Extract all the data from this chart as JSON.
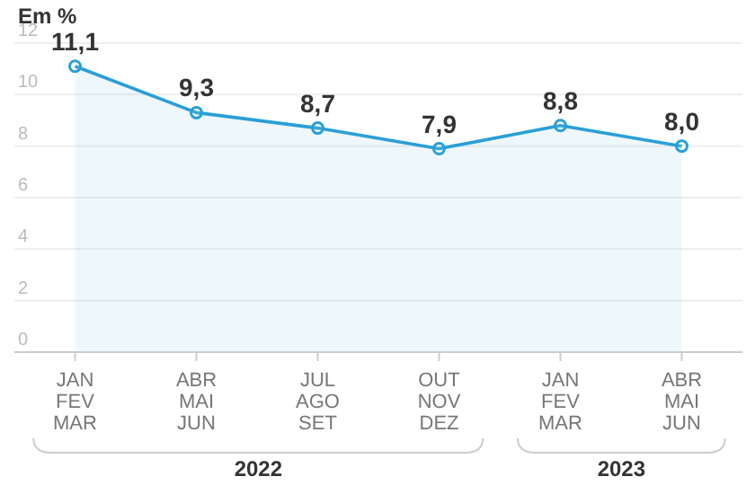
{
  "chart_data": {
    "type": "area",
    "ylabel": "Em %",
    "categories": [
      "JAN\nFEV\nMAR",
      "ABR\nMAI\nJUN",
      "JUL\nAGO\nSET",
      "OUT\nNOV\nDEZ",
      "JAN\nFEV\nMAR",
      "ABR\nMAI\nJUN"
    ],
    "series": [
      {
        "color": "#2a9fd6",
        "values": [
          11.1,
          9.3,
          8.7,
          7.9,
          8.8,
          8.0
        ],
        "value_labels": [
          "11,1",
          "9,3",
          "8,7",
          "7,9",
          "8,8",
          "8,0"
        ]
      }
    ],
    "ylim": [
      0,
      12
    ],
    "yticks": [
      0,
      2,
      4,
      6,
      8,
      10,
      12
    ],
    "grid": "y",
    "marker": "circle",
    "annotations": [
      "2022",
      "2023"
    ]
  }
}
